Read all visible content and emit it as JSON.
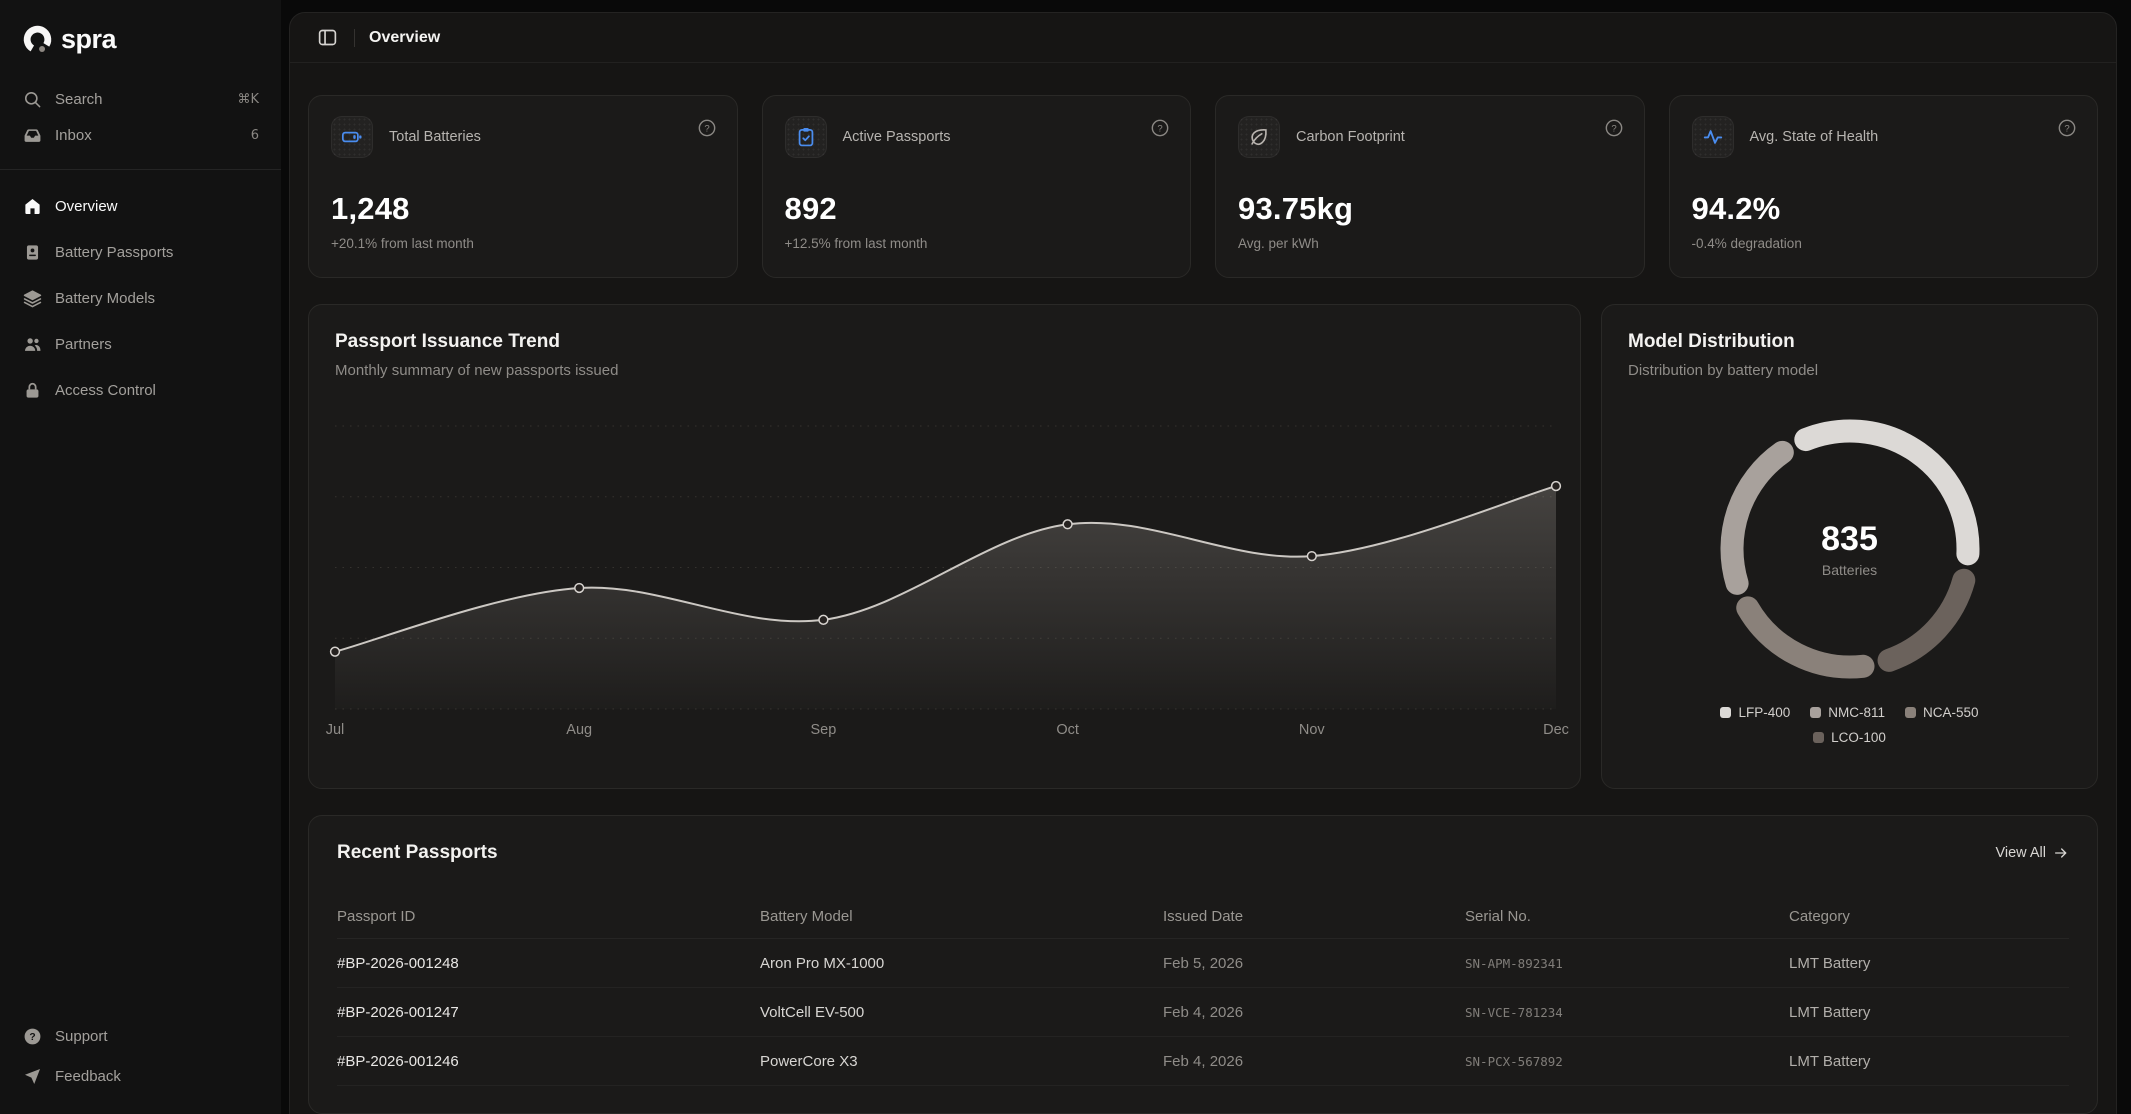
{
  "brand": {
    "name": "spra",
    "logo_icon": "ring-dot-logo-icon"
  },
  "colors": {
    "accent_blue": "#4a8df0",
    "page_bg": "#090909",
    "sidebar_bg": "#121212",
    "panel_bg": "#161514",
    "card_bg": "#1b1a19",
    "border": "#2a2927",
    "text_primary": "#fafafa",
    "text_muted": "#8f8c88"
  },
  "sidebar": {
    "search": {
      "label": "Search",
      "shortcut": "⌘K",
      "icon": "search-icon"
    },
    "inbox": {
      "label": "Inbox",
      "badge": "6",
      "icon": "inbox-icon"
    },
    "nav": [
      {
        "label": "Overview",
        "icon": "home-icon",
        "active": true
      },
      {
        "label": "Battery Passports",
        "icon": "passport-icon",
        "active": false
      },
      {
        "label": "Battery Models",
        "icon": "layers-icon",
        "active": false
      },
      {
        "label": "Partners",
        "icon": "users-icon",
        "active": false
      },
      {
        "label": "Access Control",
        "icon": "lock-icon",
        "active": false
      }
    ],
    "footer": [
      {
        "label": "Support",
        "icon": "help-circle-icon"
      },
      {
        "label": "Feedback",
        "icon": "send-icon"
      }
    ]
  },
  "header": {
    "title": "Overview",
    "toggle_icon": "panel-left-icon"
  },
  "stats": [
    {
      "label": "Total Batteries",
      "value": "1,248",
      "sub": "+20.1% from last month",
      "icon": "battery-icon",
      "icon_color": "#4a8df0",
      "help_icon": "help-circle-icon"
    },
    {
      "label": "Active Passports",
      "value": "892",
      "sub": "+12.5% from last month",
      "icon": "clipboard-check-icon",
      "icon_color": "#4a8df0",
      "help_icon": "help-circle-icon"
    },
    {
      "label": "Carbon Footprint",
      "value": "93.75kg",
      "sub": "Avg. per kWh",
      "icon": "leaf-icon",
      "icon_color": "#b8b3ae",
      "help_icon": "help-circle-icon"
    },
    {
      "label": "Avg. State of Health",
      "value": "94.2%",
      "sub": "-0.4% degradation",
      "icon": "activity-icon",
      "icon_color": "#4a8df0",
      "help_icon": "help-circle-icon"
    }
  ],
  "trend_card": {
    "title": "Passport Issuance Trend",
    "subtitle": "Monthly summary of new passports issued"
  },
  "model_card": {
    "title": "Model Distribution",
    "subtitle": "Distribution by battery model",
    "center_value": "835",
    "center_label": "Batteries"
  },
  "table_card": {
    "title": "Recent Passports",
    "view_all": "View All",
    "view_all_icon": "arrow-right-icon",
    "columns": [
      "Passport ID",
      "Battery Model",
      "Issued Date",
      "Serial No.",
      "Category"
    ],
    "rows": [
      {
        "passport_id": "#BP-2026-001248",
        "battery_model": "Aron Pro MX-1000",
        "issued_date": "Feb 5, 2026",
        "serial": "SN-APM-892341",
        "category": "LMT Battery"
      },
      {
        "passport_id": "#BP-2026-001247",
        "battery_model": "VoltCell EV-500",
        "issued_date": "Feb 4, 2026",
        "serial": "SN-VCE-781234",
        "category": "LMT Battery"
      },
      {
        "passport_id": "#BP-2026-001246",
        "battery_model": "PowerCore X3",
        "issued_date": "Feb 4, 2026",
        "serial": "SN-PCX-567892",
        "category": "LMT Battery"
      }
    ]
  },
  "chart_data": [
    {
      "type": "area",
      "title": "Passport Issuance Trend",
      "x": [
        "Jul",
        "Aug",
        "Sep",
        "Oct",
        "Nov",
        "Dec"
      ],
      "series": [
        {
          "name": "Passports issued",
          "values": [
            45,
            95,
            70,
            145,
            120,
            175
          ]
        }
      ],
      "ylim": [
        0,
        230
      ],
      "xlabel": "",
      "ylabel": "",
      "grid": "dotted-horizontal",
      "legend": "none",
      "note": "y-axis has no tick labels in UI; values estimated from plotted curve",
      "line_color": "#ccc8c3",
      "dot_fill": "#262220",
      "area_fill_top": "rgba(190,183,176,0.26)",
      "area_fill_bottom": "rgba(190,183,176,0.02)"
    },
    {
      "type": "donut",
      "title": "Model Distribution",
      "total": 835,
      "center_label": "Batteries",
      "segments": [
        {
          "name": "LFP-400",
          "value": 310,
          "color": "#dcd9d6"
        },
        {
          "name": "NMC-811",
          "value": 195,
          "color": "#a8a19c"
        },
        {
          "name": "NCA-550",
          "value": 180,
          "color": "#8a817a"
        },
        {
          "name": "LCO-100",
          "value": 150,
          "color": "#6b625c"
        }
      ],
      "draw_order_clockwise": [
        "LFP-400",
        "LCO-100",
        "NCA-550",
        "NMC-811"
      ],
      "start_angle_deg": -22,
      "gap_deg": 13,
      "legend_position": "bottom"
    }
  ]
}
